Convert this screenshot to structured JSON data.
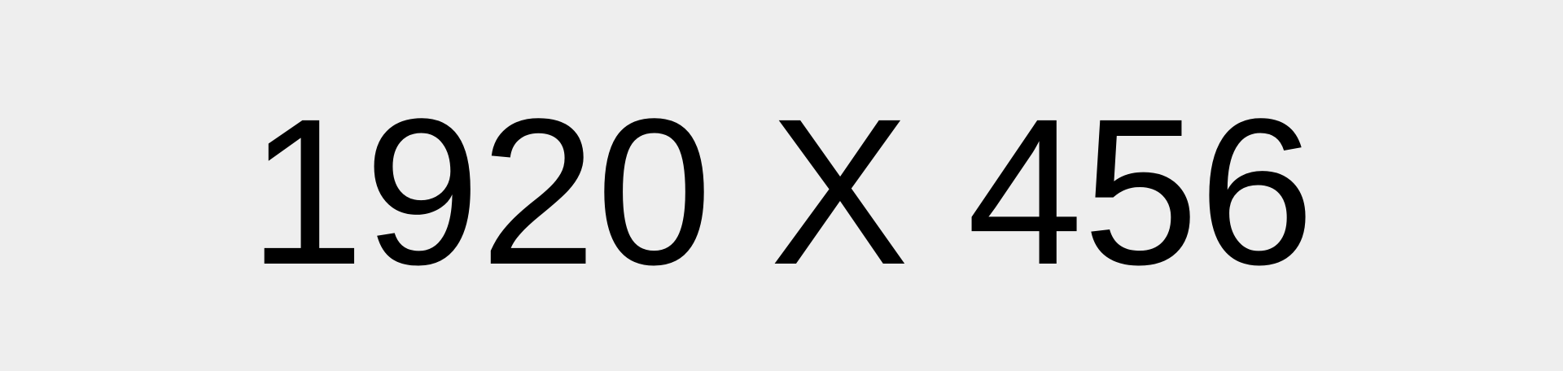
{
  "placeholder": {
    "text": "1920 X 456",
    "text_color": "#000000",
    "background_color": "#eeeeee"
  }
}
